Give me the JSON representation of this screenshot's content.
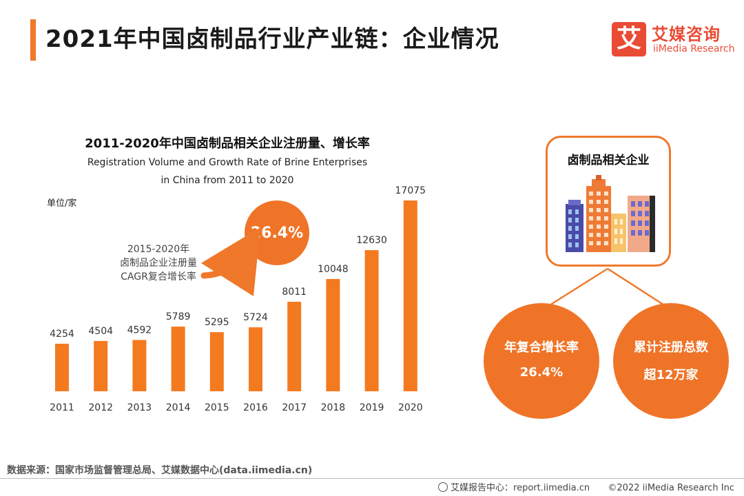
{
  "header": {
    "title": "2021年中国卤制品行业产业链：企业情况",
    "logo_mark": "艾",
    "logo_cn": "艾媒咨询",
    "logo_en": "iiMedia Research"
  },
  "chart_data": {
    "type": "bar",
    "title": "2011-2020年中国卤制品相关企业注册量、增长率",
    "subtitle_line1": "Registration Volume and Growth Rate of Brine Enterprises",
    "subtitle_line2": "in China from 2011 to 2020",
    "ylabel": "单位/家",
    "categories": [
      "2011",
      "2012",
      "2013",
      "2014",
      "2015",
      "2016",
      "2017",
      "2018",
      "2019",
      "2020"
    ],
    "values": [
      4254,
      4504,
      4592,
      5789,
      5295,
      5724,
      8011,
      10048,
      12630,
      17075
    ],
    "labels": [
      "4254",
      "4504",
      "4592",
      "5789",
      "5295",
      "5724",
      "8011",
      "10048",
      "12630",
      "17075"
    ],
    "ylim": [
      0,
      17075
    ],
    "bar_color": "#f47a20",
    "annotation": {
      "value": "26.4%",
      "lines": [
        "2015-2020年",
        "卤制品企业注册量",
        "CAGR复合增长率"
      ]
    }
  },
  "side_panel": {
    "box_title": "卤制品相关企业",
    "circle_left": {
      "line1": "年复合增长率",
      "line2": "26.4%"
    },
    "circle_right": {
      "line1": "累计注册总数",
      "line2": "超12万家"
    }
  },
  "footer": {
    "source": "数据来源：国家市场监督管理总局、艾媒数据中心(data.iimedia.cn)",
    "report_center": "艾媒报告中心：report.iimedia.cn",
    "copyright": "©2022  iiMedia Research  Inc"
  },
  "colors": {
    "accent": "#f0782a",
    "brand_red": "#e94b35",
    "circle_fill": "#ef7427"
  }
}
